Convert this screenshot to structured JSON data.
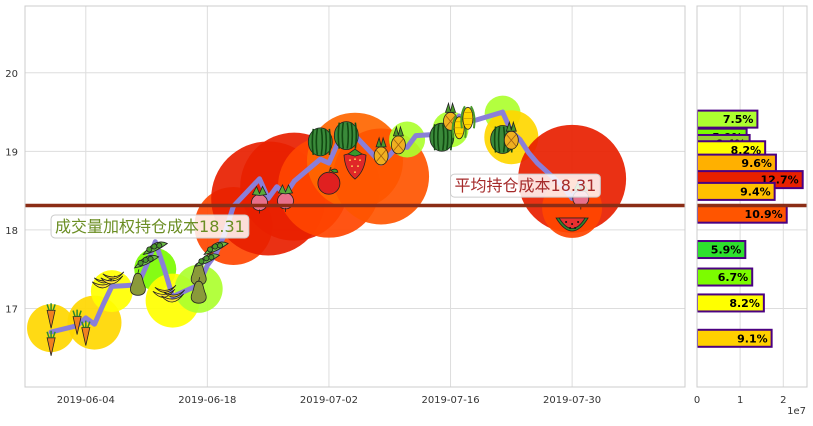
{
  "chart_data": {
    "type": "scatter",
    "main": {
      "x_ticks": [
        "2019-06-04",
        "2019-06-18",
        "2019-07-02",
        "2019-07-16",
        "2019-07-30"
      ],
      "y_ticks": [
        "17",
        "18",
        "19",
        "20"
      ],
      "ylim": [
        16.0,
        20.85
      ],
      "xlim": [
        "2019-05-28",
        "2019-08-12"
      ],
      "grid": true,
      "price_path": [
        {
          "x": "2019-05-31",
          "y": 16.7
        },
        {
          "x": "2019-06-03",
          "y": 16.78
        },
        {
          "x": "2019-06-04",
          "y": 16.88
        },
        {
          "x": "2019-06-05",
          "y": 16.8
        },
        {
          "x": "2019-06-06",
          "y": 17.05
        },
        {
          "x": "2019-06-07",
          "y": 17.28
        },
        {
          "x": "2019-06-10",
          "y": 17.3
        },
        {
          "x": "2019-06-11",
          "y": 17.55
        },
        {
          "x": "2019-06-12",
          "y": 17.85
        },
        {
          "x": "2019-06-13",
          "y": 17.52
        },
        {
          "x": "2019-06-14",
          "y": 17.15
        },
        {
          "x": "2019-06-17",
          "y": 17.3
        },
        {
          "x": "2019-06-18",
          "y": 17.55
        },
        {
          "x": "2019-06-19",
          "y": 17.7
        },
        {
          "x": "2019-06-20",
          "y": 17.95
        },
        {
          "x": "2019-06-21",
          "y": 18.3
        },
        {
          "x": "2019-06-24",
          "y": 18.65
        },
        {
          "x": "2019-06-25",
          "y": 18.4
        },
        {
          "x": "2019-06-26",
          "y": 18.55
        },
        {
          "x": "2019-06-27",
          "y": 18.45
        },
        {
          "x": "2019-06-28",
          "y": 18.62
        },
        {
          "x": "2019-07-01",
          "y": 18.9
        },
        {
          "x": "2019-07-02",
          "y": 18.85
        },
        {
          "x": "2019-07-03",
          "y": 19.1
        },
        {
          "x": "2019-07-04",
          "y": 19.22
        },
        {
          "x": "2019-07-05",
          "y": 19.2
        },
        {
          "x": "2019-07-08",
          "y": 18.85
        },
        {
          "x": "2019-07-09",
          "y": 18.95
        },
        {
          "x": "2019-07-10",
          "y": 19.08
        },
        {
          "x": "2019-07-11",
          "y": 19.05
        },
        {
          "x": "2019-07-12",
          "y": 19.2
        },
        {
          "x": "2019-07-15",
          "y": 19.22
        },
        {
          "x": "2019-07-16",
          "y": 19.28
        },
        {
          "x": "2019-07-17",
          "y": 19.45
        },
        {
          "x": "2019-07-18",
          "y": 19.38
        },
        {
          "x": "2019-07-19",
          "y": 19.4
        },
        {
          "x": "2019-07-22",
          "y": 19.5
        },
        {
          "x": "2019-07-23",
          "y": 19.25
        },
        {
          "x": "2019-07-24",
          "y": 19.15
        },
        {
          "x": "2019-07-25",
          "y": 18.98
        },
        {
          "x": "2019-07-26",
          "y": 18.85
        },
        {
          "x": "2019-07-29",
          "y": 18.55
        },
        {
          "x": "2019-07-30",
          "y": 18.4
        },
        {
          "x": "2019-07-31",
          "y": 18.62
        }
      ],
      "volume_bubbles": [
        {
          "x": "2019-05-31",
          "y": 16.75,
          "size": 0.8,
          "color": "#FFD700"
        },
        {
          "x": "2019-06-05",
          "y": 16.82,
          "size": 0.9,
          "color": "#FFD700"
        },
        {
          "x": "2019-06-07",
          "y": 17.22,
          "size": 0.7,
          "color": "#FFFF00"
        },
        {
          "x": "2019-06-12",
          "y": 17.5,
          "size": 0.7,
          "color": "#7CFC00"
        },
        {
          "x": "2019-06-14",
          "y": 17.1,
          "size": 0.9,
          "color": "#FFFF00"
        },
        {
          "x": "2019-06-17",
          "y": 17.25,
          "size": 0.8,
          "color": "#ADFF2F"
        },
        {
          "x": "2019-06-21",
          "y": 18.05,
          "size": 1.3,
          "color": "#FF4500"
        },
        {
          "x": "2019-06-25",
          "y": 18.4,
          "size": 1.9,
          "color": "#E82000"
        },
        {
          "x": "2019-06-28",
          "y": 18.55,
          "size": 1.8,
          "color": "#E82000"
        },
        {
          "x": "2019-07-02",
          "y": 18.55,
          "size": 1.7,
          "color": "#FF4500"
        },
        {
          "x": "2019-07-05",
          "y": 18.88,
          "size": 1.6,
          "color": "#FF6600"
        },
        {
          "x": "2019-07-08",
          "y": 18.68,
          "size": 1.6,
          "color": "#FF5500"
        },
        {
          "x": "2019-07-11",
          "y": 19.15,
          "size": 0.6,
          "color": "#ADFF2F"
        },
        {
          "x": "2019-07-16",
          "y": 19.28,
          "size": 0.6,
          "color": "#ADFF2F"
        },
        {
          "x": "2019-07-22",
          "y": 19.48,
          "size": 0.6,
          "color": "#ADFF2F"
        },
        {
          "x": "2019-07-23",
          "y": 19.18,
          "size": 0.9,
          "color": "#FFD700"
        },
        {
          "x": "2019-07-30",
          "y": 18.65,
          "size": 1.8,
          "color": "#E82000"
        },
        {
          "x": "2019-07-30",
          "y": 18.28,
          "size": 1.0,
          "color": "#FF4500"
        }
      ],
      "fruit_icons": [
        {
          "x": "2019-05-31",
          "y": 16.9,
          "fruit": "carrot"
        },
        {
          "x": "2019-05-31",
          "y": 16.55,
          "fruit": "carrot"
        },
        {
          "x": "2019-06-03",
          "y": 16.82,
          "fruit": "carrot"
        },
        {
          "x": "2019-06-04",
          "y": 16.68,
          "fruit": "carrot"
        },
        {
          "x": "2019-06-06",
          "y": 17.3,
          "fruit": "banana"
        },
        {
          "x": "2019-06-07",
          "y": 17.35,
          "fruit": "banana"
        },
        {
          "x": "2019-06-10",
          "y": 17.32,
          "fruit": "pear"
        },
        {
          "x": "2019-06-11",
          "y": 17.58,
          "fruit": "peapod"
        },
        {
          "x": "2019-06-12",
          "y": 17.75,
          "fruit": "peapod"
        },
        {
          "x": "2019-06-13",
          "y": 17.18,
          "fruit": "banana"
        },
        {
          "x": "2019-06-14",
          "y": 17.12,
          "fruit": "banana"
        },
        {
          "x": "2019-06-17",
          "y": 17.45,
          "fruit": "pear"
        },
        {
          "x": "2019-06-17",
          "y": 17.22,
          "fruit": "pear"
        },
        {
          "x": "2019-06-18",
          "y": 17.6,
          "fruit": "peapod"
        },
        {
          "x": "2019-06-19",
          "y": 17.75,
          "fruit": "peapod"
        },
        {
          "x": "2019-06-24",
          "y": 18.4,
          "fruit": "radish"
        },
        {
          "x": "2019-06-27",
          "y": 18.42,
          "fruit": "radish"
        },
        {
          "x": "2019-07-02",
          "y": 18.62,
          "fruit": "apple"
        },
        {
          "x": "2019-07-01",
          "y": 19.12,
          "fruit": "watermelon"
        },
        {
          "x": "2019-07-04",
          "y": 19.2,
          "fruit": "watermelon"
        },
        {
          "x": "2019-07-05",
          "y": 18.85,
          "fruit": "strawberry"
        },
        {
          "x": "2019-07-08",
          "y": 18.98,
          "fruit": "pineapple"
        },
        {
          "x": "2019-07-10",
          "y": 19.12,
          "fruit": "pineapple"
        },
        {
          "x": "2019-07-15",
          "y": 19.18,
          "fruit": "watermelon"
        },
        {
          "x": "2019-07-16",
          "y": 19.42,
          "fruit": "pineapple"
        },
        {
          "x": "2019-07-17",
          "y": 19.3,
          "fruit": "corn"
        },
        {
          "x": "2019-07-18",
          "y": 19.42,
          "fruit": "corn"
        },
        {
          "x": "2019-07-22",
          "y": 19.15,
          "fruit": "watermelon"
        },
        {
          "x": "2019-07-23",
          "y": 19.18,
          "fruit": "pineapple"
        },
        {
          "x": "2019-07-30",
          "y": 18.1,
          "fruit": "watermelon_slice"
        },
        {
          "x": "2019-07-31",
          "y": 18.45,
          "fruit": "radish"
        }
      ],
      "avg_cost_line": {
        "y": 18.31,
        "color": "#8B2D16"
      },
      "annotations": [
        {
          "text": "成交量加权持仓成本18.31",
          "x": "2019-05-31",
          "y": 18.05,
          "color": "#6B8E23"
        },
        {
          "text": "平均持仓成本18.31",
          "x": "2019-07-16",
          "y": 18.57,
          "color": "#A52A2A"
        }
      ]
    },
    "side": {
      "type": "barh",
      "x_ticks": [
        "0",
        "1",
        "2"
      ],
      "x_tick_values": [
        0,
        1,
        2
      ],
      "xlim": [
        0,
        2.55
      ],
      "offset_label": "1e7",
      "bars": [
        {
          "price": 19.41,
          "volume": 1.4,
          "label": "7.5%",
          "color": "#ADFF2F"
        },
        {
          "price": 19.18,
          "volume": 1.15,
          "label": "5.9%",
          "color": "#7CFC00"
        },
        {
          "price": 19.1,
          "volume": 1.22,
          "label": "6.4%",
          "color": "#9ACD32"
        },
        {
          "price": 19.02,
          "volume": 1.58,
          "label": "8.2%",
          "color": "#FFFF00"
        },
        {
          "price": 18.85,
          "volume": 1.83,
          "label": "9.6%",
          "color": "#FFB000"
        },
        {
          "price": 18.64,
          "volume": 2.45,
          "label": "12.7%",
          "color": "#E82000"
        },
        {
          "price": 18.49,
          "volume": 1.8,
          "label": "9.4%",
          "color": "#FFC000"
        },
        {
          "price": 18.2,
          "volume": 2.08,
          "label": "10.9%",
          "color": "#FF5500"
        },
        {
          "price": 17.75,
          "volume": 1.12,
          "label": "5.9%",
          "color": "#2EE02E"
        },
        {
          "price": 17.4,
          "volume": 1.28,
          "label": "6.7%",
          "color": "#7CFC00"
        },
        {
          "price": 17.07,
          "volume": 1.55,
          "label": "8.2%",
          "color": "#FFFF00"
        },
        {
          "price": 16.62,
          "volume": 1.73,
          "label": "9.1%",
          "color": "#FFD000"
        }
      ],
      "avg_cost_line": {
        "y": 18.31,
        "color": "#8B2D16"
      }
    }
  }
}
